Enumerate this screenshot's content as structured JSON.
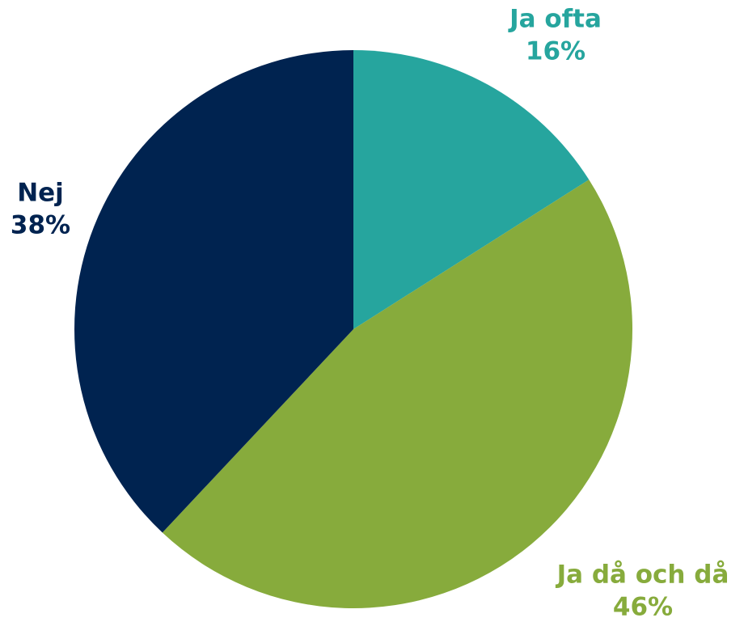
{
  "chart_data": {
    "type": "pie",
    "categories": [
      "Ja ofta",
      "Ja då och då",
      "Nej"
    ],
    "values": [
      16,
      46,
      38
    ],
    "value_labels": [
      "16%",
      "46%",
      "38%"
    ],
    "colors": [
      "#26a59e",
      "#87ab3c",
      "#002350"
    ]
  }
}
